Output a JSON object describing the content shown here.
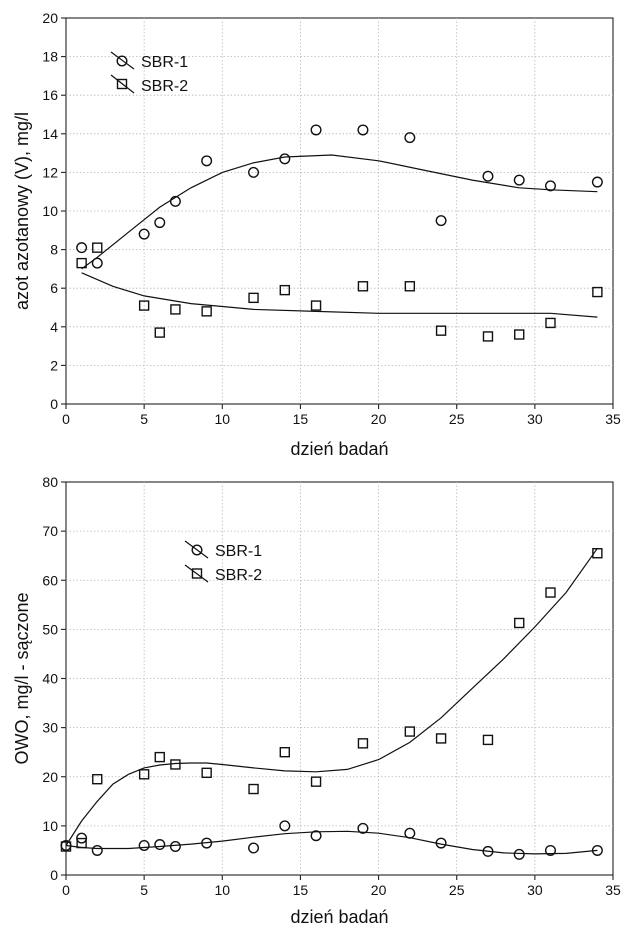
{
  "chart_data": [
    {
      "type": "scatter",
      "title": "",
      "xlabel": "dzień badań",
      "ylabel": "azot azotanowy (V), mg/l",
      "xlim": [
        0,
        35
      ],
      "ylim": [
        0,
        20
      ],
      "xticks": [
        "0",
        "5",
        "10",
        "15",
        "20",
        "25",
        "30",
        "35"
      ],
      "yticks": [
        "0",
        "2",
        "4",
        "6",
        "8",
        "10",
        "12",
        "14",
        "16",
        "18",
        "20"
      ],
      "grid": true,
      "legend_position": "top-left",
      "series": [
        {
          "name": "SBR-1",
          "marker": "circle",
          "points": [
            [
              1,
              8.1
            ],
            [
              2,
              7.3
            ],
            [
              5,
              8.8
            ],
            [
              6,
              9.4
            ],
            [
              7,
              10.5
            ],
            [
              9,
              12.6
            ],
            [
              12,
              12.0
            ],
            [
              14,
              12.7
            ],
            [
              16,
              14.2
            ],
            [
              19,
              14.2
            ],
            [
              22,
              13.8
            ],
            [
              24,
              9.5
            ],
            [
              27,
              11.8
            ],
            [
              29,
              11.6
            ],
            [
              31,
              11.3
            ],
            [
              34,
              11.5
            ]
          ],
          "fit": [
            [
              1,
              7.0
            ],
            [
              2,
              7.6
            ],
            [
              4,
              8.9
            ],
            [
              6,
              10.2
            ],
            [
              8,
              11.2
            ],
            [
              10,
              12.0
            ],
            [
              12,
              12.5
            ],
            [
              14,
              12.8
            ],
            [
              17,
              12.9
            ],
            [
              20,
              12.6
            ],
            [
              23,
              12.1
            ],
            [
              26,
              11.6
            ],
            [
              29,
              11.2
            ],
            [
              31,
              11.1
            ],
            [
              34,
              11.0
            ]
          ]
        },
        {
          "name": "SBR-2",
          "marker": "square",
          "points": [
            [
              1,
              7.3
            ],
            [
              2,
              8.1
            ],
            [
              5,
              5.1
            ],
            [
              6,
              3.7
            ],
            [
              7,
              4.9
            ],
            [
              9,
              4.8
            ],
            [
              12,
              5.5
            ],
            [
              14,
              5.9
            ],
            [
              16,
              5.1
            ],
            [
              19,
              6.1
            ],
            [
              22,
              6.1
            ],
            [
              24,
              3.8
            ],
            [
              27,
              3.5
            ],
            [
              29,
              3.6
            ],
            [
              31,
              4.2
            ],
            [
              34,
              5.8
            ]
          ]
        }
      ],
      "fit_sbr2": [
        [
          1,
          6.8
        ],
        [
          3,
          6.1
        ],
        [
          5,
          5.6
        ],
        [
          8,
          5.2
        ],
        [
          12,
          4.9
        ],
        [
          16,
          4.8
        ],
        [
          20,
          4.7
        ],
        [
          24,
          4.7
        ],
        [
          28,
          4.7
        ],
        [
          31,
          4.7
        ],
        [
          34,
          4.5
        ]
      ]
    },
    {
      "type": "scatter",
      "title": "",
      "xlabel": "dzień badań",
      "ylabel": "OWO, mg/l - sączone",
      "xlim": [
        0,
        35
      ],
      "ylim": [
        0,
        80
      ],
      "xticks": [
        "0",
        "5",
        "10",
        "15",
        "20",
        "25",
        "30",
        "35"
      ],
      "yticks": [
        "0",
        "10",
        "20",
        "30",
        "40",
        "50",
        "60",
        "70",
        "80"
      ],
      "grid": true,
      "legend_position": "top-center",
      "series": [
        {
          "name": "SBR-1",
          "marker": "circle",
          "points": [
            [
              0,
              6.0
            ],
            [
              1,
              7.5
            ],
            [
              2,
              5.0
            ],
            [
              5,
              6.0
            ],
            [
              6,
              6.2
            ],
            [
              7,
              5.8
            ],
            [
              9,
              6.5
            ],
            [
              12,
              5.5
            ],
            [
              14,
              10.0
            ],
            [
              16,
              8.0
            ],
            [
              19,
              9.5
            ],
            [
              22,
              8.5
            ],
            [
              24,
              6.5
            ],
            [
              27,
              4.8
            ],
            [
              29,
              4.2
            ],
            [
              31,
              5.0
            ],
            [
              34,
              5.0
            ]
          ],
          "fit": [
            [
              0,
              6.0
            ],
            [
              1,
              5.6
            ],
            [
              2,
              5.4
            ],
            [
              4,
              5.4
            ],
            [
              6,
              5.8
            ],
            [
              8,
              6.3
            ],
            [
              10,
              6.9
            ],
            [
              12,
              7.7
            ],
            [
              14,
              8.4
            ],
            [
              16,
              8.8
            ],
            [
              18,
              8.9
            ],
            [
              20,
              8.5
            ],
            [
              22,
              7.6
            ],
            [
              24,
              6.3
            ],
            [
              26,
              5.2
            ],
            [
              28,
              4.5
            ],
            [
              30,
              4.3
            ],
            [
              32,
              4.4
            ],
            [
              34,
              5.0
            ]
          ]
        },
        {
          "name": "SBR-2",
          "marker": "square",
          "points": [
            [
              0,
              5.8
            ],
            [
              1,
              6.5
            ],
            [
              2,
              19.5
            ],
            [
              5,
              20.5
            ],
            [
              6,
              24.0
            ],
            [
              7,
              22.5
            ],
            [
              9,
              20.8
            ],
            [
              12,
              17.5
            ],
            [
              14,
              25.0
            ],
            [
              16,
              19.0
            ],
            [
              19,
              26.8
            ],
            [
              22,
              29.2
            ],
            [
              24,
              27.8
            ],
            [
              27,
              27.5
            ],
            [
              29,
              51.3
            ],
            [
              31,
              57.5
            ],
            [
              34,
              65.5
            ]
          ],
          "fit": [
            [
              0,
              6.0
            ],
            [
              1,
              11.0
            ],
            [
              2,
              15.0
            ],
            [
              3,
              18.5
            ],
            [
              4,
              20.5
            ],
            [
              5,
              21.8
            ],
            [
              6,
              22.4
            ],
            [
              7,
              22.7
            ],
            [
              8,
              22.8
            ],
            [
              9,
              22.8
            ],
            [
              10,
              22.5
            ],
            [
              12,
              21.8
            ],
            [
              14,
              21.2
            ],
            [
              16,
              21.0
            ],
            [
              18,
              21.5
            ],
            [
              20,
              23.5
            ],
            [
              22,
              27.0
            ],
            [
              24,
              32.0
            ],
            [
              26,
              38.0
            ],
            [
              28,
              44.0
            ],
            [
              30,
              50.5
            ],
            [
              32,
              57.5
            ],
            [
              34,
              66.5
            ]
          ]
        }
      ]
    }
  ]
}
